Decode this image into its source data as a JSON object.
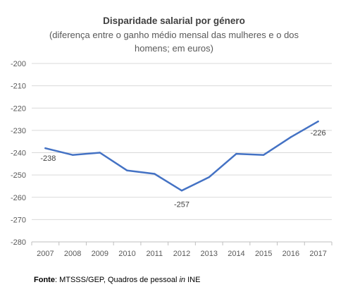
{
  "chart_data": {
    "type": "line",
    "title": "Disparidade salarial por género",
    "subtitle": "(diferença entre o ganho médio mensal das mulheres e o dos homens; em euros)",
    "categories": [
      "2007",
      "2008",
      "2009",
      "2010",
      "2011",
      "2012",
      "2013",
      "2014",
      "2015",
      "2016",
      "2017"
    ],
    "values": [
      -238,
      -241,
      -240,
      -248,
      -249.5,
      -257,
      -251,
      -240.5,
      -241,
      -233,
      -226
    ],
    "ylim": [
      -280,
      -200
    ],
    "yticks": [
      "-200",
      "-210",
      "-220",
      "-230",
      "-240",
      "-250",
      "-260",
      "-270",
      "-280"
    ],
    "data_labels": [
      {
        "index": 0,
        "text": "-238"
      },
      {
        "index": 5,
        "text": "-257"
      },
      {
        "index": 10,
        "text": "-226"
      }
    ],
    "grid": true,
    "legend": "none",
    "line_color": "#4472C4",
    "grid_color": "#d9d9d9"
  },
  "source": {
    "label": "Fonte",
    "text_before": ": MTSSS/GEP, Quadros de pessoal ",
    "text_italic": "in",
    "text_after": " INE"
  }
}
